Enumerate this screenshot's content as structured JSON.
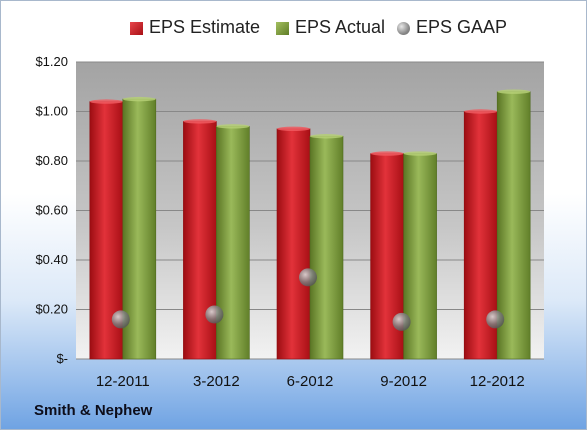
{
  "chart_data": {
    "type": "bar",
    "title": "",
    "xlabel": "",
    "ylabel": "",
    "categories": [
      "12-2011",
      "3-2012",
      "6-2012",
      "9-2012",
      "12-2012"
    ],
    "series": [
      {
        "name": "EPS Estimate",
        "kind": "bar",
        "color": "#c8161d",
        "values": [
          1.04,
          0.96,
          0.93,
          0.83,
          1.0
        ]
      },
      {
        "name": "EPS Actual",
        "kind": "bar",
        "color": "#7a9a3a",
        "values": [
          1.05,
          0.94,
          0.9,
          0.83,
          1.08
        ]
      },
      {
        "name": "EPS GAAP",
        "kind": "point",
        "color": "#8a8a8a",
        "values": [
          0.16,
          0.18,
          0.33,
          0.15,
          0.16
        ]
      }
    ],
    "ylim": [
      0,
      1.2
    ],
    "yticks": [
      0,
      0.2,
      0.4,
      0.6,
      0.8,
      1.0,
      1.2
    ],
    "ytick_labels": [
      "$-",
      "$0.20",
      "$0.40",
      "$0.60",
      "$0.80",
      "$1.00",
      "$1.20"
    ],
    "grid": true,
    "legend_position": "top",
    "footer": "Smith & Nephew"
  }
}
